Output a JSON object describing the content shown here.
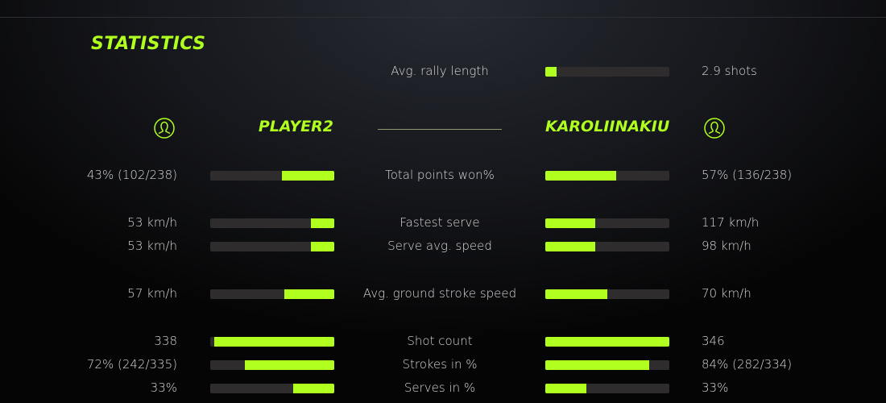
{
  "title": "STATISTICS",
  "accent": "#b0ff1e",
  "players": {
    "left": {
      "name": "PLAYER2",
      "icon": "user-circle-icon"
    },
    "right": {
      "name": "KAROLIINAKIU",
      "icon": "user-circle-icon"
    }
  },
  "rally": {
    "label": "Avg. rally length",
    "value": "2.9 shots",
    "fill": 0.09
  },
  "stats": [
    {
      "label": "Total points won%",
      "left": "43% (102/238)",
      "right": "57% (136/238)",
      "left_fill": 0.42,
      "right_fill": 0.57
    },
    {
      "label": "Fastest serve",
      "left": "53 km/h",
      "right": "117 km/h",
      "left_fill": 0.19,
      "right_fill": 0.4
    },
    {
      "label": "Serve avg. speed",
      "left": "53 km/h",
      "right": "98 km/h",
      "left_fill": 0.19,
      "right_fill": 0.4
    },
    {
      "label": "Avg. ground stroke speed",
      "left": "57 km/h",
      "right": "70 km/h",
      "left_fill": 0.4,
      "right_fill": 0.5
    },
    {
      "label": "Shot count",
      "left": "338",
      "right": "346",
      "left_fill": 0.97,
      "right_fill": 1.0
    },
    {
      "label": "Strokes in %",
      "left": "72% (242/335)",
      "right": "84% (282/334)",
      "left_fill": 0.72,
      "right_fill": 0.84
    },
    {
      "label": "Serves in %",
      "left": "33%",
      "right": "33%",
      "left_fill": 0.33,
      "right_fill": 0.33
    }
  ]
}
